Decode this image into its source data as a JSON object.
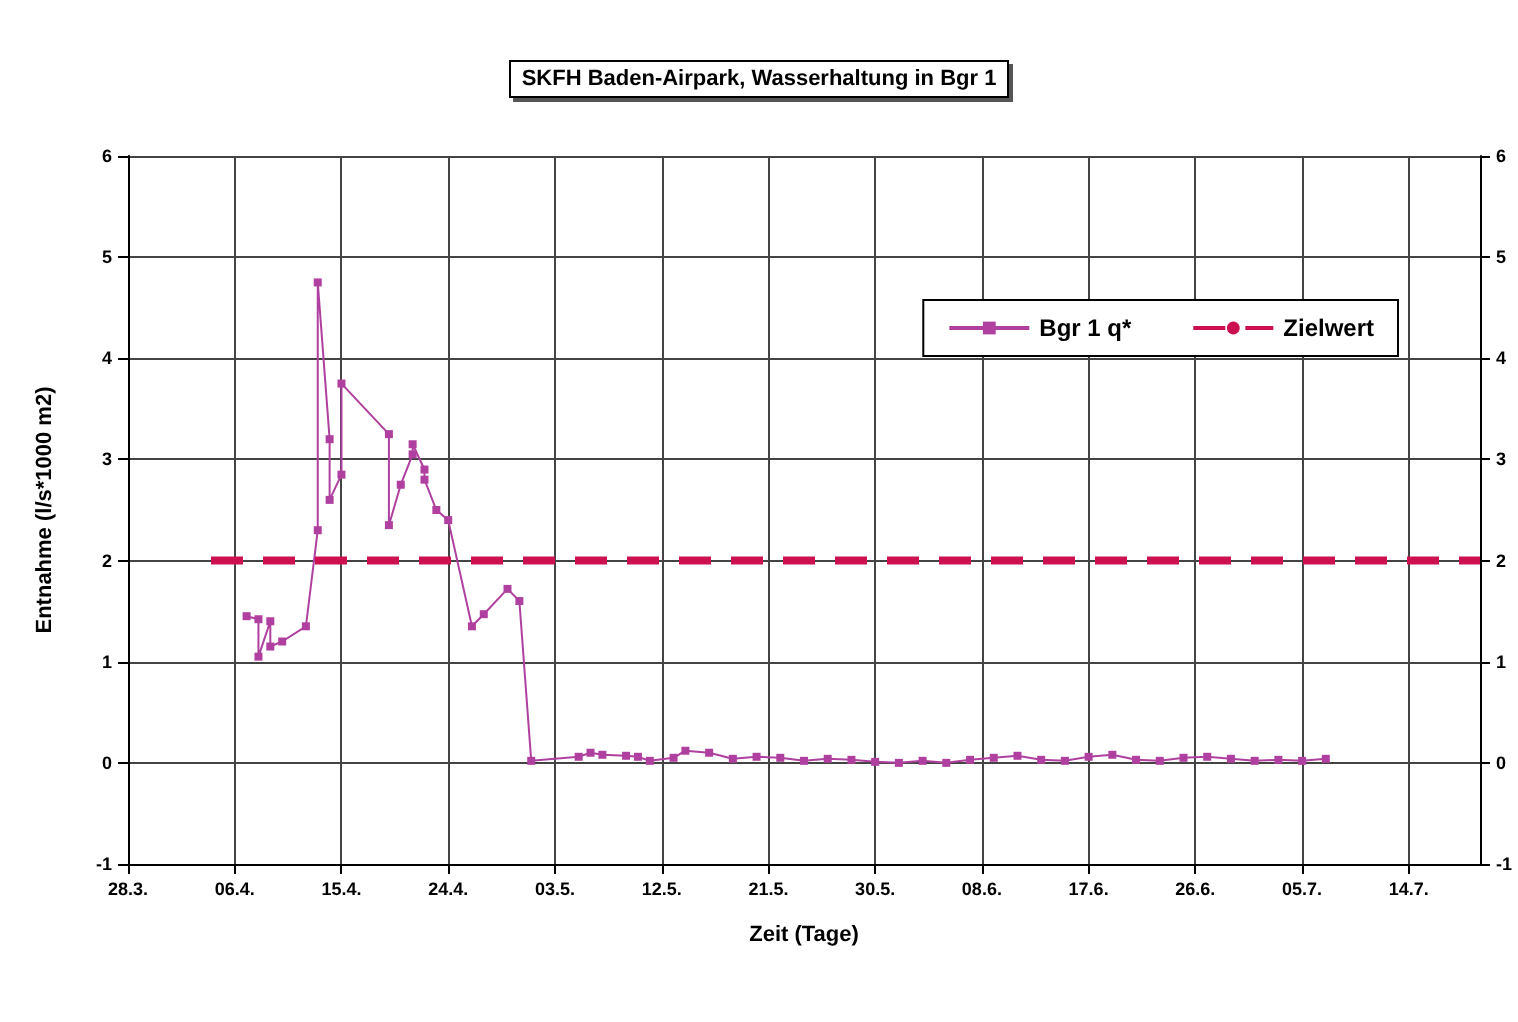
{
  "chart_data": {
    "type": "line",
    "title": "SKFH Baden-Airpark, Wasserhaltung in Bgr 1",
    "xlabel": "Zeit (Tage)",
    "ylabel": "Entnahme (l/s*1000 m2)",
    "xlim": [
      "--03-28",
      "--07-20"
    ],
    "xticks": [
      {
        "value": "--03-28",
        "label": "28.3."
      },
      {
        "value": "--04-06",
        "label": "06.4."
      },
      {
        "value": "--04-15",
        "label": "15.4."
      },
      {
        "value": "--04-24",
        "label": "24.4."
      },
      {
        "value": "--05-03",
        "label": "03.5."
      },
      {
        "value": "--05-12",
        "label": "12.5."
      },
      {
        "value": "--05-21",
        "label": "21.5."
      },
      {
        "value": "--05-30",
        "label": "30.5."
      },
      {
        "value": "--06-08",
        "label": "08.6."
      },
      {
        "value": "--06-17",
        "label": "17.6."
      },
      {
        "value": "--06-26",
        "label": "26.6."
      },
      {
        "value": "--07-05",
        "label": "05.7."
      },
      {
        "value": "--07-14",
        "label": "14.7."
      }
    ],
    "ylim": [
      -1,
      6
    ],
    "yticks": [
      -1,
      0,
      1,
      2,
      3,
      4,
      5,
      6
    ],
    "y2lim": [
      -1,
      6
    ],
    "y2ticks": [
      -1,
      0,
      1,
      2,
      3,
      4,
      5,
      6
    ],
    "grid": true,
    "legend": "top right",
    "series": [
      {
        "name": "Bgr 1 q*",
        "color": "#b040a0",
        "marker": "square",
        "line_style": "solid",
        "x": [
          "--04-07",
          "--04-08",
          "--04-08",
          "--04-09",
          "--04-09",
          "--04-10",
          "--04-12",
          "--04-13",
          "--04-13",
          "--04-14",
          "--04-14",
          "--04-15",
          "--04-15",
          "--04-19",
          "--04-19",
          "--04-20",
          "--04-21",
          "--04-21",
          "--04-22",
          "--04-22",
          "--04-23",
          "--04-24",
          "--04-26",
          "--04-27",
          "--04-29",
          "--04-30",
          "--05-01",
          "--05-05",
          "--05-06",
          "--05-07",
          "--05-09",
          "--05-10",
          "--05-11",
          "--05-13",
          "--05-14",
          "--05-16",
          "--05-18",
          "--05-20",
          "--05-22",
          "--05-24",
          "--05-26",
          "--05-28",
          "--05-30",
          "--06-01",
          "--06-03",
          "--06-05",
          "--06-07",
          "--06-09",
          "--06-11",
          "--06-13",
          "--06-15",
          "--06-17",
          "--06-19",
          "--06-21",
          "--06-23",
          "--06-25",
          "--06-27",
          "--06-29",
          "--07-01",
          "--07-03",
          "--07-05",
          "--07-07"
        ],
        "values": [
          1.45,
          1.42,
          1.05,
          1.4,
          1.15,
          1.2,
          1.35,
          2.3,
          4.75,
          3.2,
          2.6,
          2.85,
          3.75,
          3.25,
          2.35,
          2.75,
          3.05,
          3.15,
          2.9,
          2.8,
          2.5,
          2.4,
          1.35,
          1.47,
          1.72,
          1.6,
          0.02,
          0.06,
          0.1,
          0.08,
          0.07,
          0.06,
          0.02,
          0.05,
          0.12,
          0.1,
          0.04,
          0.06,
          0.05,
          0.02,
          0.04,
          0.03,
          0.01,
          0.0,
          0.02,
          0.0,
          0.03,
          0.05,
          0.07,
          0.03,
          0.02,
          0.06,
          0.08,
          0.03,
          0.02,
          0.05,
          0.06,
          0.04,
          0.02,
          0.03,
          0.02,
          0.04
        ]
      },
      {
        "name": "Zielwert",
        "color": "#cc1050",
        "marker": "none",
        "line_style": "dashed",
        "x": [
          "--04-04",
          "--07-20"
        ],
        "values": [
          2,
          2
        ]
      }
    ]
  }
}
